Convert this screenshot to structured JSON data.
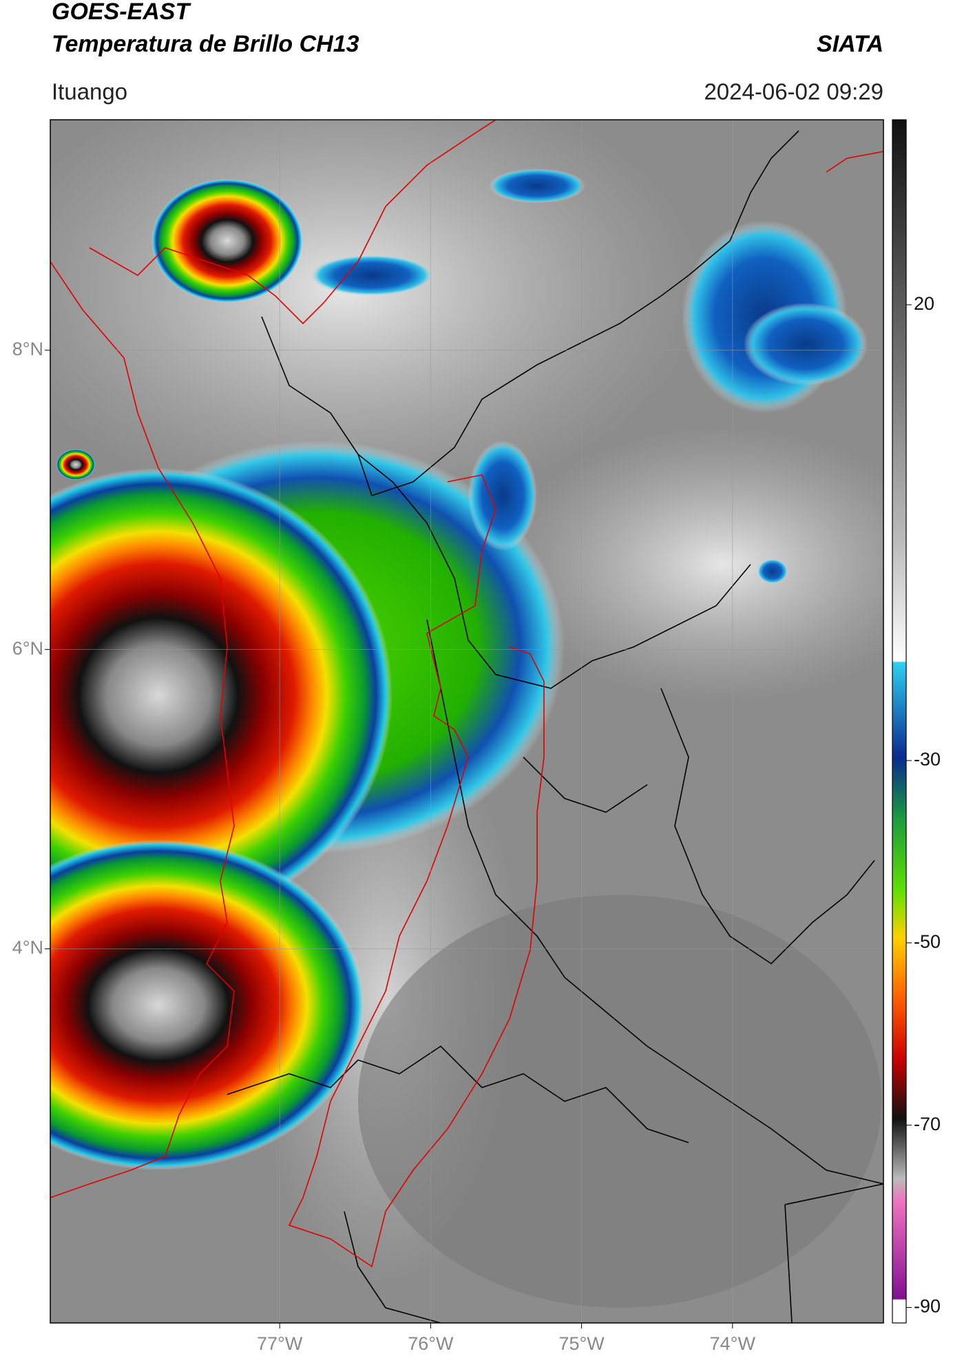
{
  "header": {
    "title": "GOES-EAST",
    "subtitle": "Temperatura de Brillo CH13",
    "brand": "SIATA",
    "location": "Ituango",
    "timestamp": "2024-06-02 09:29"
  },
  "map": {
    "xlim": [
      -78.52,
      -73.0
    ],
    "ylim": [
      1.5,
      9.54
    ],
    "xticks": [
      {
        "value": -77,
        "label": "77°W"
      },
      {
        "value": -76,
        "label": "76°W"
      },
      {
        "value": -75,
        "label": "75°W"
      },
      {
        "value": -74,
        "label": "74°W"
      }
    ],
    "yticks": [
      {
        "value": 4,
        "label": "4°N"
      },
      {
        "value": 6,
        "label": "6°N"
      },
      {
        "value": 8,
        "label": "8°N"
      }
    ],
    "grid": true
  },
  "colorbar": {
    "lim": [
      -91.7,
      40.3
    ],
    "ticks": [
      20,
      -30,
      -50,
      -70,
      -90
    ]
  }
}
